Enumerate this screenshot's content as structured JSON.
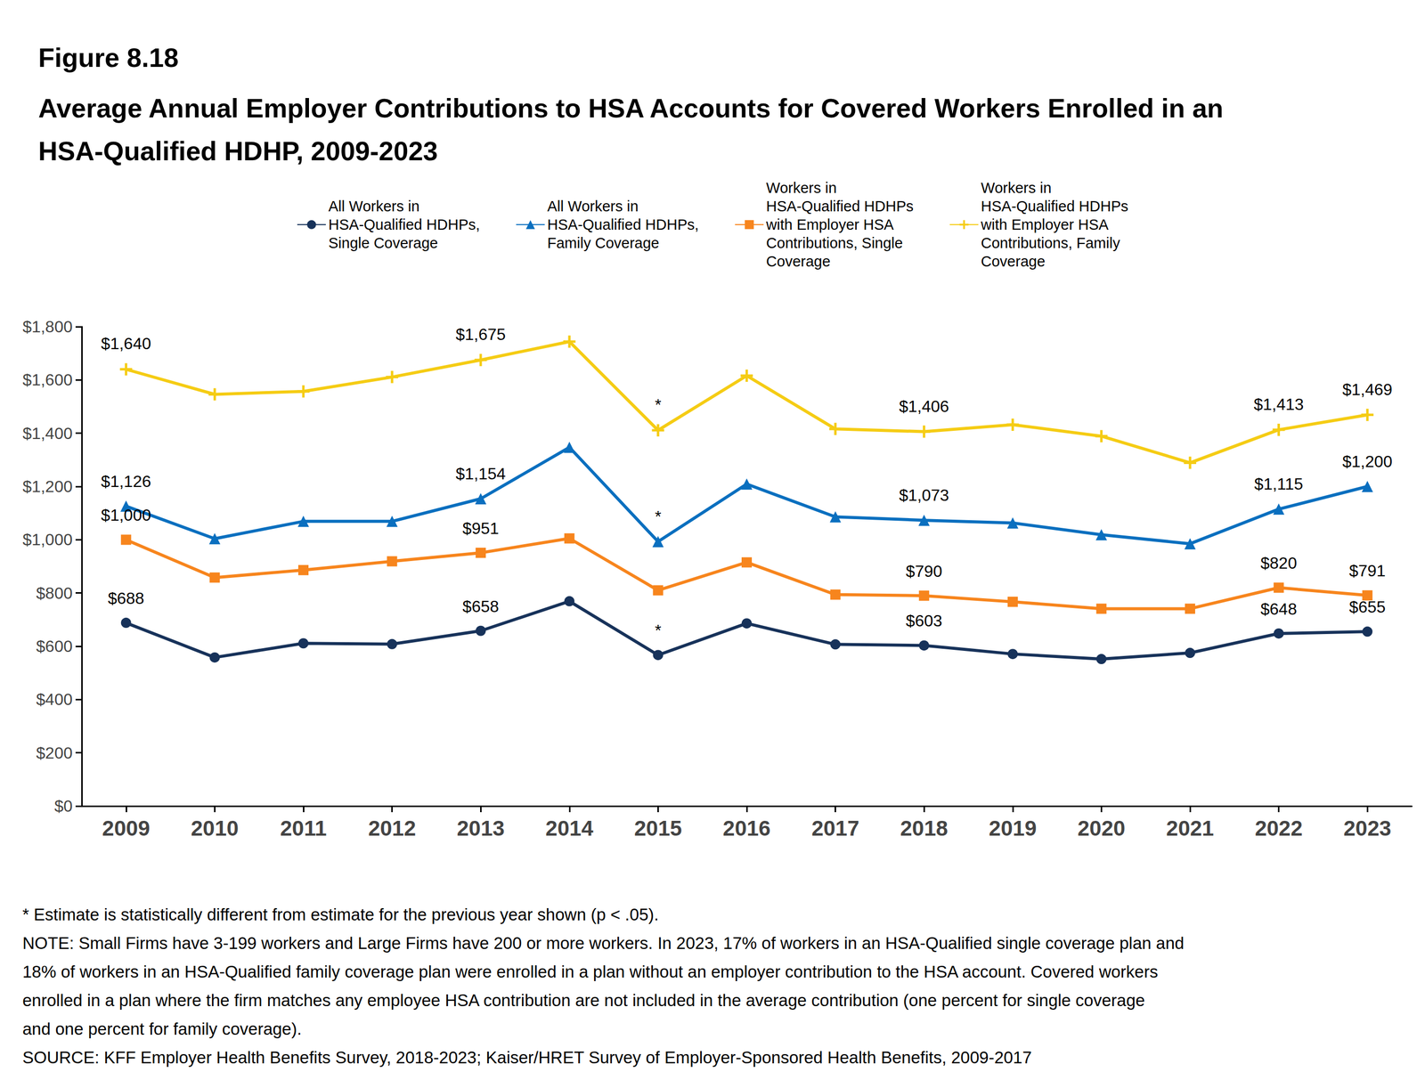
{
  "chart_data": {
    "type": "line",
    "figure_label": "Figure 8.18",
    "title": "Average Annual Employer Contributions to HSA Accounts for Covered Workers Enrolled in an\nHSA-Qualified HDHP, 2009-2023",
    "categories": [
      "2009",
      "2010",
      "2011",
      "2012",
      "2013",
      "2014",
      "2015",
      "2016",
      "2017",
      "2018",
      "2019",
      "2020",
      "2021",
      "2022",
      "2023"
    ],
    "ylim": [
      0,
      1800
    ],
    "yticks": [
      {
        "value": 0,
        "label": "$0"
      },
      {
        "value": 200,
        "label": "$200"
      },
      {
        "value": 400,
        "label": "$400"
      },
      {
        "value": 600,
        "label": "$600"
      },
      {
        "value": 800,
        "label": "$800"
      },
      {
        "value": 1000,
        "label": "$1,000"
      },
      {
        "value": 1200,
        "label": "$1,200"
      },
      {
        "value": 1400,
        "label": "$1,400"
      },
      {
        "value": 1600,
        "label": "$1,600"
      },
      {
        "value": 1800,
        "label": "$1,800"
      }
    ],
    "grid": false,
    "legend": "top",
    "data_labels": true,
    "series": [
      {
        "name": "All Workers in\nHSA-Qualified HDHPs,\nSingle Coverage",
        "color": "#17325a",
        "marker": "circle",
        "values": [
          688,
          558,
          611,
          608,
          658,
          769,
          567,
          686,
          607,
          603,
          571,
          552,
          575,
          648,
          655
        ],
        "value_labels": [
          "$688",
          null,
          null,
          null,
          "$658",
          null,
          null,
          null,
          null,
          "$603",
          null,
          null,
          null,
          "$648",
          "$655"
        ],
        "annotations": [
          null,
          null,
          null,
          null,
          null,
          null,
          "*",
          null,
          null,
          null,
          null,
          null,
          null,
          null,
          null
        ]
      },
      {
        "name": "All Workers in\nHSA-Qualified HDHPs,\nFamily Coverage",
        "color": "#0a6fbf",
        "marker": "triangle",
        "values": [
          1126,
          1004,
          1069,
          1069,
          1154,
          1347,
          993,
          1209,
          1086,
          1073,
          1063,
          1019,
          985,
          1115,
          1200
        ],
        "value_labels": [
          "$1,126",
          null,
          null,
          null,
          "$1,154",
          null,
          null,
          null,
          null,
          "$1,073",
          null,
          null,
          null,
          "$1,115",
          "$1,200"
        ],
        "annotations": [
          null,
          null,
          null,
          null,
          null,
          null,
          "*",
          null,
          null,
          null,
          null,
          null,
          null,
          null,
          null
        ]
      },
      {
        "name": "Workers in\nHSA-Qualified HDHPs\nwith Employer HSA\nContributions, Single\nCoverage",
        "color": "#f7851d",
        "marker": "square",
        "values": [
          1000,
          858,
          886,
          919,
          951,
          1005,
          810,
          915,
          794,
          790,
          767,
          741,
          741,
          820,
          791
        ],
        "value_labels": [
          "$1,000",
          null,
          null,
          null,
          "$951",
          null,
          null,
          null,
          null,
          "$790",
          null,
          null,
          null,
          "$820",
          "$791"
        ],
        "annotations": [
          null,
          null,
          null,
          null,
          null,
          null,
          null,
          null,
          null,
          null,
          null,
          null,
          null,
          null,
          null
        ]
      },
      {
        "name": "Workers in\nHSA-Qualified HDHPs\nwith Employer HSA\nContributions, Family\nCoverage",
        "color": "#f5cc14",
        "marker": "plus",
        "values": [
          1640,
          1546,
          1557,
          1611,
          1675,
          1744,
          1411,
          1616,
          1416,
          1406,
          1432,
          1389,
          1289,
          1413,
          1469
        ],
        "value_labels": [
          "$1,640",
          null,
          null,
          null,
          "$1,675",
          null,
          null,
          null,
          null,
          "$1,406",
          null,
          null,
          null,
          "$1,413",
          "$1,469"
        ],
        "annotations": [
          null,
          null,
          null,
          null,
          null,
          null,
          "*",
          null,
          null,
          null,
          null,
          null,
          null,
          null,
          null
        ]
      }
    ],
    "notes": [
      "* Estimate is statistically different from estimate for the previous year shown (p < .05).",
      "NOTE: Small Firms have 3-199 workers and Large Firms have 200 or more workers. In 2023, 17% of workers in an HSA-Qualified single coverage plan and",
      "18% of workers in an HSA-Qualified family coverage plan were enrolled in a plan without an employer contribution to the HSA account. Covered workers",
      "enrolled in a plan where the firm matches any employee HSA contribution are not included in the average contribution (one percent for single coverage",
      "and one percent for family coverage).",
      "SOURCE: KFF Employer Health Benefits Survey, 2018-2023; Kaiser/HRET Survey of Employer-Sponsored Health Benefits, 2009-2017"
    ]
  }
}
